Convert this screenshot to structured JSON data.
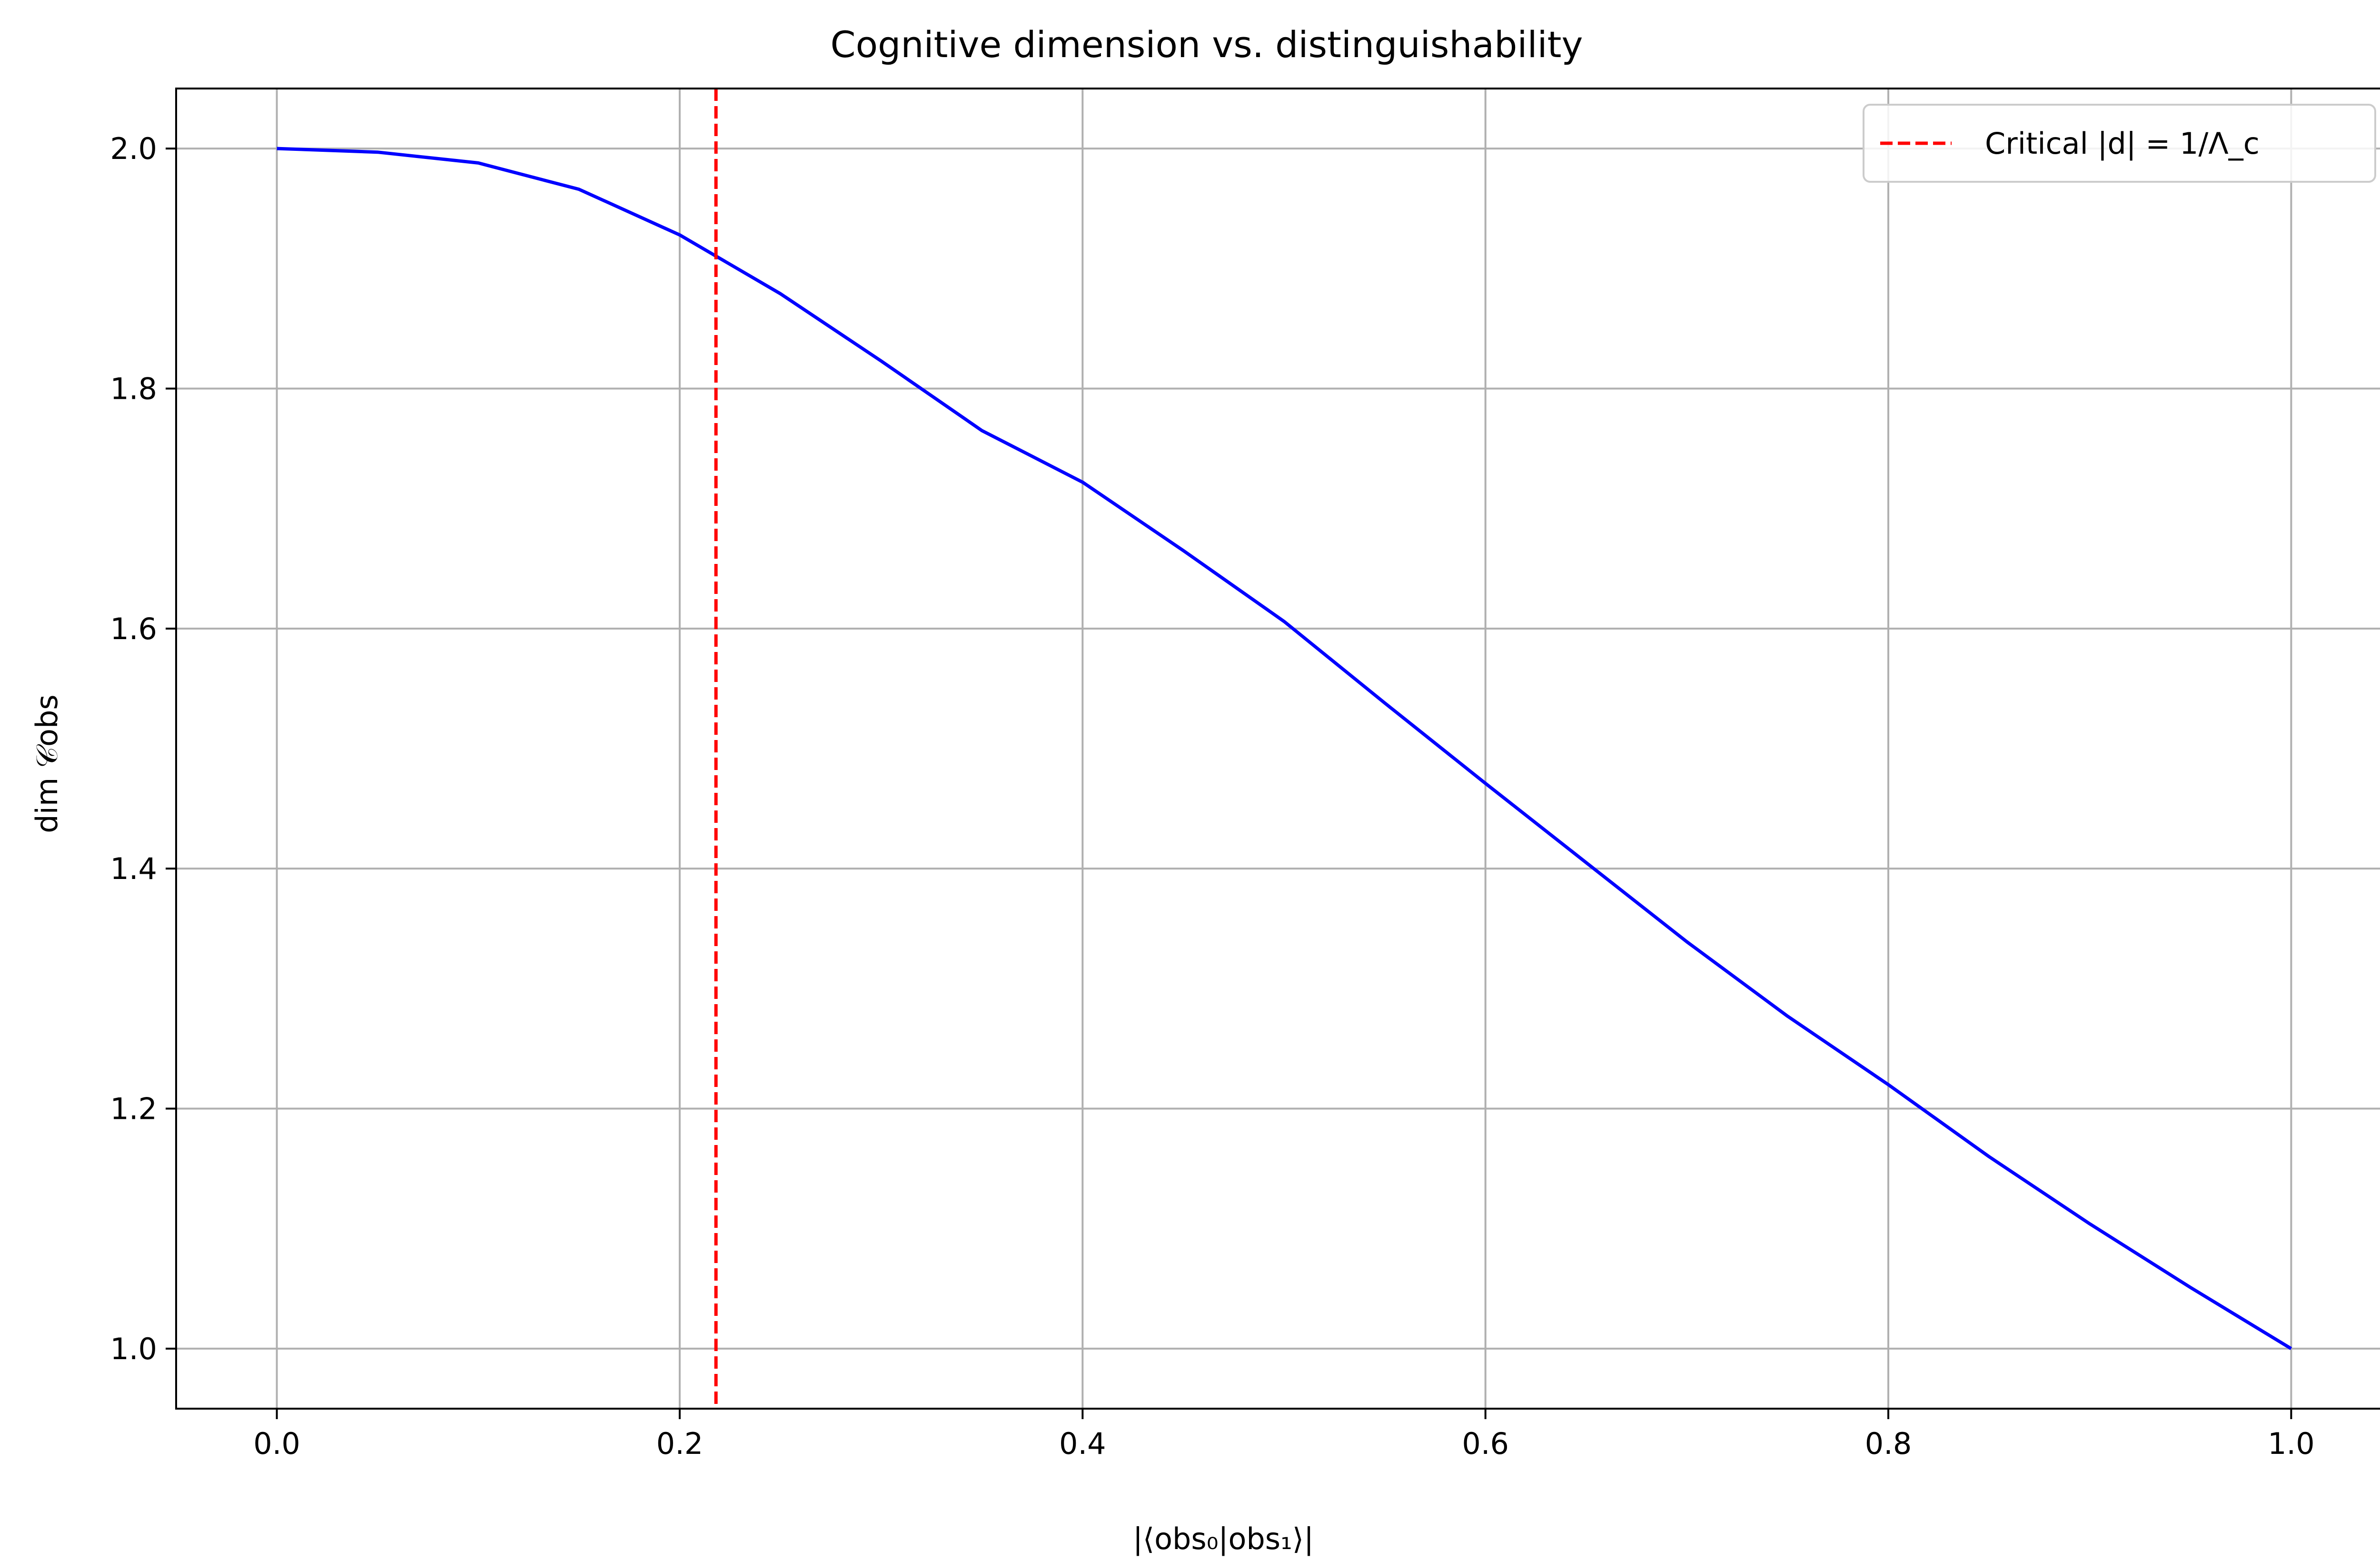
{
  "chart_data": {
    "type": "line",
    "title": "Cognitive dimension vs. distinguishability",
    "xlabel": "|⟨obs₀|obs₁⟩|",
    "ylabel": "dim 𝒞obs",
    "xlim": [
      -0.05,
      1.05
    ],
    "ylim": [
      0.95,
      2.05
    ],
    "xticks": [
      "0.0",
      "0.2",
      "0.4",
      "0.6",
      "0.8",
      "1.0"
    ],
    "yticks": [
      "1.0",
      "1.2",
      "1.4",
      "1.6",
      "1.8",
      "2.0"
    ],
    "grid": true,
    "legend_position": "top-right",
    "series": [
      {
        "name": "",
        "color": "#0000ff",
        "style": "solid",
        "x": [
          0.0,
          0.05,
          0.1,
          0.15,
          0.2,
          0.25,
          0.3,
          0.35,
          0.4,
          0.45,
          0.5,
          0.55,
          0.6,
          0.65,
          0.7,
          0.75,
          0.8,
          0.85,
          0.9,
          0.95,
          1.0
        ],
        "y": [
          2.0,
          1.997,
          1.988,
          1.966,
          1.928,
          1.879,
          1.823,
          1.765,
          1.722,
          1.665,
          1.606,
          1.538,
          1.471,
          1.405,
          1.339,
          1.277,
          1.22,
          1.16,
          1.104,
          1.051,
          1.0
        ]
      }
    ],
    "reference_lines": [
      {
        "name": "Critical |d| = 1/Λ_c",
        "orientation": "vertical",
        "x": 0.218,
        "color": "#ff0000",
        "style": "dashed"
      }
    ]
  }
}
